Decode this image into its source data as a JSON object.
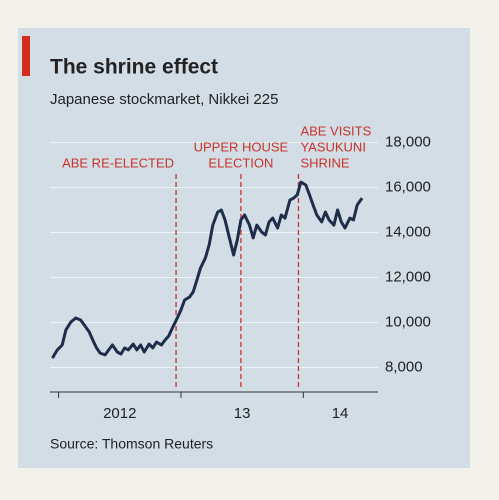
{
  "chart_data": {
    "type": "line",
    "title": "The shrine effect",
    "subtitle": "Japanese stockmarket, Nikkei 225",
    "source": "Source: Thomson Reuters",
    "x": [
      2011.95,
      2011.99,
      2012.03,
      2012.06,
      2012.1,
      2012.14,
      2012.18,
      2012.21,
      2012.25,
      2012.28,
      2012.31,
      2012.34,
      2012.38,
      2012.41,
      2012.44,
      2012.48,
      2012.51,
      2012.54,
      2012.57,
      2012.61,
      2012.64,
      2012.67,
      2012.7,
      2012.74,
      2012.77,
      2012.8,
      2012.84,
      2012.87,
      2012.9,
      2012.93,
      2012.97,
      2013.0,
      2013.03,
      2013.07,
      2013.1,
      2013.13,
      2013.16,
      2013.2,
      2013.23,
      2013.26,
      2013.3,
      2013.33,
      2013.36,
      2013.39,
      2013.43,
      2013.46,
      2013.49,
      2013.52,
      2013.56,
      2013.59,
      2013.62,
      2013.66,
      2013.69,
      2013.72,
      2013.75,
      2013.79,
      2013.82,
      2013.85,
      2013.89,
      2013.92,
      2013.95,
      2013.98,
      2014.02,
      2014.05,
      2014.08,
      2014.11,
      2014.15,
      2014.18,
      2014.21,
      2014.25,
      2014.28,
      2014.31,
      2014.34,
      2014.38,
      2014.41,
      2014.44,
      2014.48
    ],
    "series": [
      {
        "color": "#1e2d4a",
        "values": [
          8420,
          8780,
          9000,
          9670,
          10020,
          10200,
          10110,
          9890,
          9580,
          9220,
          8870,
          8640,
          8560,
          8780,
          9000,
          8690,
          8600,
          8870,
          8780,
          9040,
          8780,
          9000,
          8690,
          9040,
          8870,
          9130,
          9000,
          9220,
          9400,
          9760,
          10200,
          10560,
          11000,
          11130,
          11360,
          11890,
          12420,
          12870,
          13440,
          14330,
          14910,
          15000,
          14560,
          13890,
          13000,
          13670,
          14560,
          14780,
          14330,
          13760,
          14330,
          14020,
          13890,
          14470,
          14640,
          14200,
          14780,
          14640,
          15440,
          15530,
          15670,
          16240,
          16110,
          15670,
          15220,
          14780,
          14470,
          14910,
          14560,
          14330,
          15000,
          14470,
          14200,
          14640,
          14560,
          15220,
          15530
        ]
      }
    ],
    "xlim": [
      2011.93,
      2014.61
    ],
    "xticks": [
      2012,
      2013,
      2014
    ],
    "xtick_labels": [
      {
        "value": 2012.5,
        "label": "2012"
      },
      {
        "value": 2013.5,
        "label": "13"
      },
      {
        "value": 2014.3,
        "label": "14"
      }
    ],
    "ylim": [
      7000,
      19000
    ],
    "yticks": [
      {
        "value": 8000,
        "label": "8,000"
      },
      {
        "value": 10000,
        "label": "10,000"
      },
      {
        "value": 12000,
        "label": "12,000"
      },
      {
        "value": 14000,
        "label": "14,000"
      },
      {
        "value": 16000,
        "label": "16,000"
      },
      {
        "value": 18000,
        "label": "18,000"
      }
    ],
    "grid": true,
    "events": [
      {
        "x": 2012.96,
        "label": [
          "ABE RE-ELECTED"
        ],
        "color": "#c8332b"
      },
      {
        "x": 2013.49,
        "label": [
          "UPPER HOUSE",
          "ELECTION"
        ],
        "color": "#c8332b"
      },
      {
        "x": 2013.96,
        "label": [
          "ABE VISITS",
          "YASUKUNI",
          "SHRINE"
        ],
        "color": "#c8332b"
      }
    ]
  }
}
